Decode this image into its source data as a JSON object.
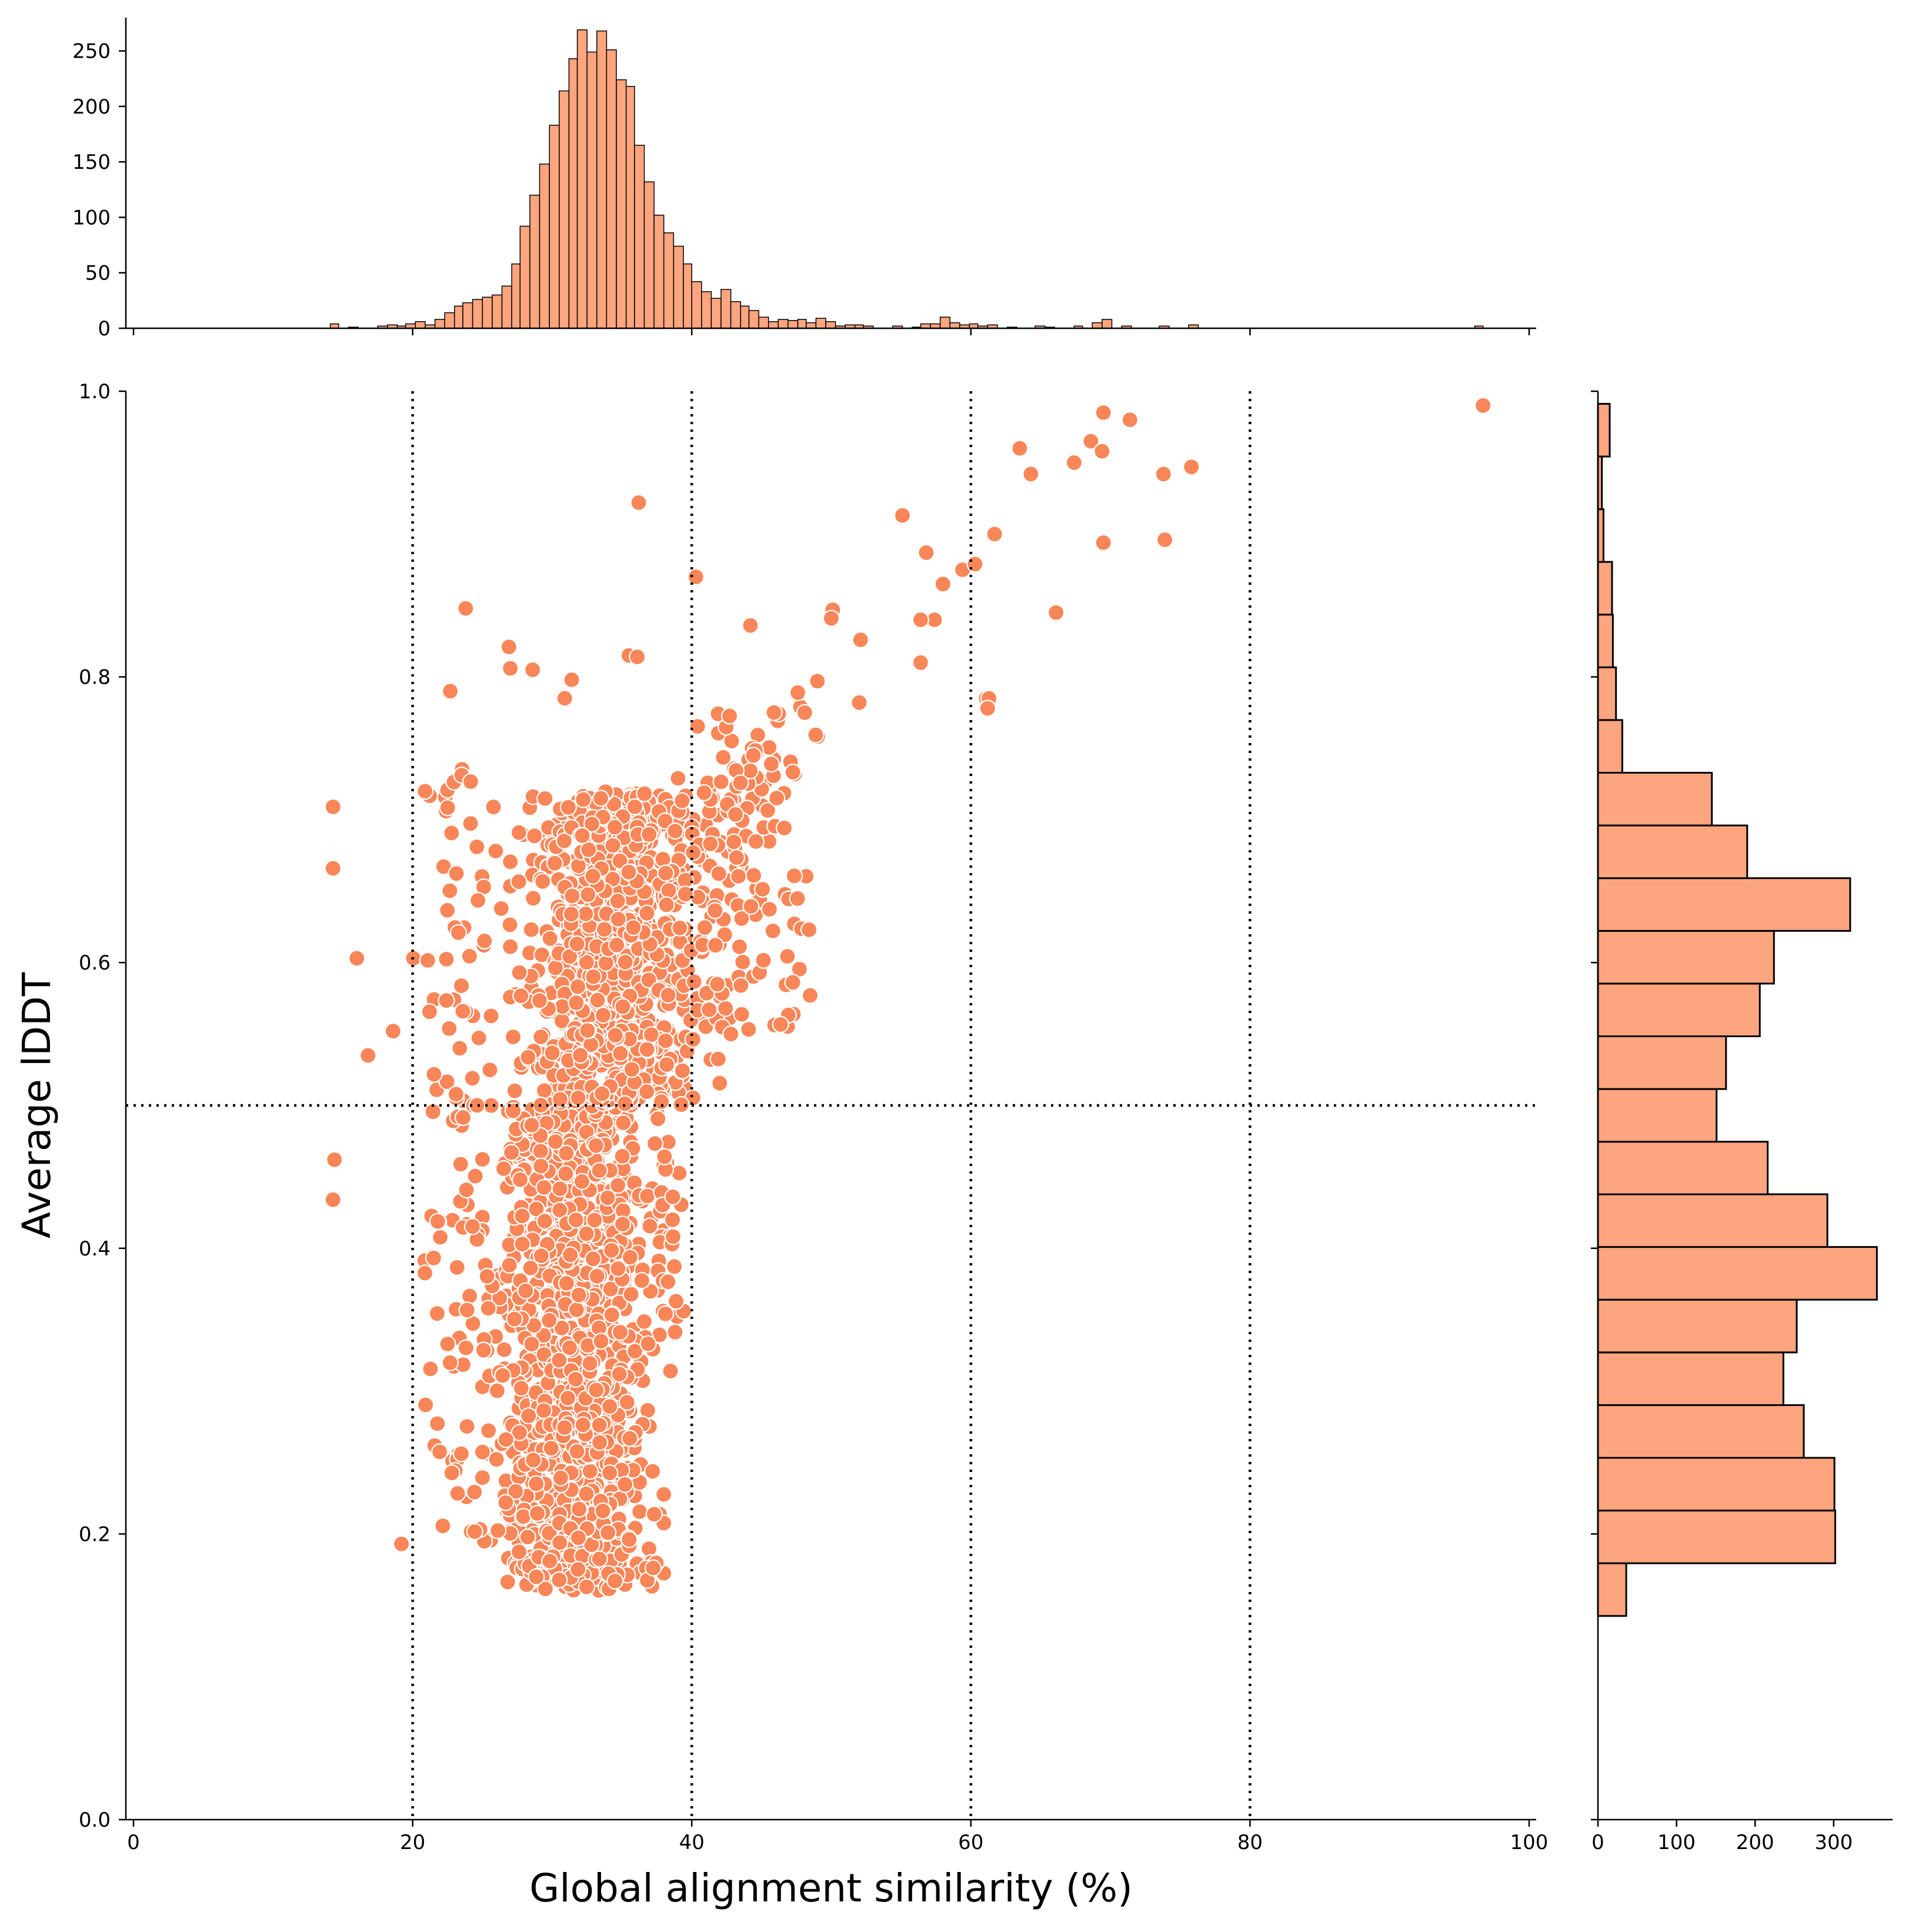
{
  "chart_data": {
    "type": "scatter",
    "title": "",
    "xlabel": "Global alignment similarity (%)",
    "ylabel": "Average lDDT",
    "xlim": [
      0,
      100
    ],
    "ylim": [
      0,
      1.0
    ],
    "grid": false,
    "legend": "none",
    "colors": {
      "points": "#f88658",
      "point_edge": "#ffffff",
      "histogram": "#fda57f",
      "histogram_edge": "#000000",
      "reference_lines": "#000000"
    },
    "reference_lines": {
      "vertical_x": [
        20,
        40,
        60,
        80
      ],
      "horizontal_y": [
        0.5
      ]
    },
    "x_ticks": [
      "0",
      "20",
      "40",
      "60",
      "80",
      "100"
    ],
    "y_ticks": [
      "0.0",
      "0.2",
      "0.4",
      "0.6",
      "0.8",
      "1.0"
    ],
    "scatter_outliers": {
      "x": [
        96.7,
        69.5,
        71.4,
        63.5,
        68.6,
        69.4,
        64.3,
        67.4,
        75.8,
        73.8,
        55.1,
        36.2,
        61.7,
        69.5,
        73.9,
        56.8,
        59.4,
        60.3,
        58.0,
        57.4,
        40.3,
        50.1,
        50.0,
        66.1,
        56.4,
        61.1,
        52.1,
        56.4,
        61.3,
        61.2,
        26.9,
        35.5,
        36.1,
        28.6,
        27.0,
        30.9,
        22.7,
        31.4,
        23.8,
        44.2,
        47.6,
        48.1,
        49.0,
        52.0,
        14.3,
        14.3,
        14.4,
        14.3,
        16.0,
        16.8,
        18.6,
        19.2
      ],
      "y": [
        0.99,
        0.985,
        0.98,
        0.96,
        0.965,
        0.958,
        0.942,
        0.95,
        0.947,
        0.942,
        0.913,
        0.922,
        0.9,
        0.894,
        0.896,
        0.887,
        0.875,
        0.879,
        0.865,
        0.84,
        0.87,
        0.847,
        0.841,
        0.845,
        0.81,
        0.785,
        0.826,
        0.84,
        0.785,
        0.778,
        0.821,
        0.815,
        0.814,
        0.805,
        0.806,
        0.785,
        0.79,
        0.798,
        0.848,
        0.836,
        0.789,
        0.775,
        0.797,
        0.782,
        0.709,
        0.666,
        0.462,
        0.434,
        0.603,
        0.535,
        0.552,
        0.193
      ]
    },
    "scatter_clusters": [
      {
        "x_range": [
          25,
          38
        ],
        "y_range": [
          0.16,
          0.5
        ],
        "n": 1200
      },
      {
        "x_range": [
          27,
          42
        ],
        "y_range": [
          0.5,
          0.72
        ],
        "n": 900
      },
      {
        "x_range": [
          20,
          27
        ],
        "y_range": [
          0.2,
          0.75
        ],
        "n": 120
      },
      {
        "x_range": [
          38,
          50
        ],
        "y_range": [
          0.55,
          0.78
        ],
        "n": 150
      },
      {
        "x_range": [
          37,
          40
        ],
        "y_range": [
          0.3,
          0.5
        ],
        "n": 30
      }
    ],
    "x_histogram": {
      "y_ticks": [
        "0",
        "50",
        "100",
        "150",
        "200",
        "250"
      ],
      "ylim": [
        0,
        280
      ],
      "bins": [
        [
          14.1,
          14.7,
          4
        ],
        [
          15.4,
          16.1,
          1
        ],
        [
          16.8,
          17.5,
          0
        ],
        [
          17.5,
          18.2,
          2
        ],
        [
          18.2,
          18.9,
          3
        ],
        [
          18.9,
          19.5,
          2
        ],
        [
          19.5,
          20.2,
          4
        ],
        [
          20.2,
          20.9,
          6
        ],
        [
          20.9,
          21.6,
          3
        ],
        [
          21.6,
          22.3,
          8
        ],
        [
          22.3,
          23.0,
          14
        ],
        [
          23.0,
          23.6,
          20
        ],
        [
          23.6,
          24.3,
          23
        ],
        [
          24.3,
          25.0,
          26
        ],
        [
          25.0,
          25.7,
          28
        ],
        [
          25.7,
          26.4,
          30
        ],
        [
          26.4,
          27.1,
          38
        ],
        [
          27.1,
          27.7,
          58
        ],
        [
          27.7,
          28.4,
          92
        ],
        [
          28.4,
          29.1,
          120
        ],
        [
          29.1,
          29.8,
          148
        ],
        [
          29.8,
          30.5,
          183
        ],
        [
          30.5,
          31.2,
          214
        ],
        [
          31.2,
          31.8,
          243
        ],
        [
          31.8,
          32.5,
          269
        ],
        [
          32.5,
          33.2,
          249
        ],
        [
          33.2,
          33.9,
          268
        ],
        [
          33.9,
          34.6,
          251
        ],
        [
          34.6,
          35.3,
          224
        ],
        [
          35.3,
          35.9,
          218
        ],
        [
          35.9,
          36.6,
          165
        ],
        [
          36.6,
          37.3,
          132
        ],
        [
          37.3,
          38.0,
          102
        ],
        [
          38.0,
          38.7,
          86
        ],
        [
          38.7,
          39.4,
          74
        ],
        [
          39.4,
          40.0,
          58
        ],
        [
          40.0,
          40.7,
          42
        ],
        [
          40.7,
          41.4,
          33
        ],
        [
          41.4,
          42.1,
          27
        ],
        [
          42.1,
          42.8,
          35
        ],
        [
          42.8,
          43.5,
          24
        ],
        [
          43.5,
          44.1,
          20
        ],
        [
          44.1,
          44.8,
          16
        ],
        [
          44.8,
          45.5,
          10
        ],
        [
          45.5,
          46.2,
          6
        ],
        [
          46.2,
          46.9,
          8
        ],
        [
          46.9,
          47.6,
          7
        ],
        [
          47.6,
          48.2,
          8
        ],
        [
          48.2,
          48.9,
          5
        ],
        [
          48.9,
          49.6,
          9
        ],
        [
          49.6,
          50.3,
          6
        ],
        [
          50.3,
          51.0,
          2
        ],
        [
          51.0,
          51.7,
          3
        ],
        [
          51.7,
          52.3,
          3
        ],
        [
          52.3,
          53.0,
          2
        ],
        [
          54.4,
          55.1,
          2
        ],
        [
          55.8,
          56.4,
          1
        ],
        [
          56.4,
          57.1,
          4
        ],
        [
          57.1,
          57.8,
          4
        ],
        [
          57.8,
          58.5,
          10
        ],
        [
          58.5,
          59.2,
          5
        ],
        [
          59.2,
          59.9,
          3
        ],
        [
          59.9,
          60.5,
          4
        ],
        [
          60.5,
          61.2,
          2
        ],
        [
          61.2,
          61.9,
          3
        ],
        [
          62.6,
          63.3,
          1
        ],
        [
          64.6,
          65.3,
          2
        ],
        [
          65.3,
          66.0,
          1
        ],
        [
          67.4,
          68.0,
          2
        ],
        [
          68.7,
          69.4,
          5
        ],
        [
          69.4,
          70.1,
          8
        ],
        [
          70.8,
          71.5,
          2
        ],
        [
          73.5,
          74.2,
          2
        ],
        [
          75.6,
          76.3,
          3
        ],
        [
          96.1,
          96.7,
          2
        ]
      ]
    },
    "y_histogram": {
      "x_ticks": [
        "0",
        "100",
        "200",
        "300"
      ],
      "xlim": [
        0,
        375
      ],
      "bins": [
        [
          0.1426,
          0.1795,
          36
        ],
        [
          0.1795,
          0.2164,
          302
        ],
        [
          0.2164,
          0.2533,
          301
        ],
        [
          0.2533,
          0.2902,
          262
        ],
        [
          0.2902,
          0.3271,
          236
        ],
        [
          0.3271,
          0.364,
          253
        ],
        [
          0.364,
          0.4009,
          355
        ],
        [
          0.4009,
          0.4378,
          292
        ],
        [
          0.4378,
          0.4746,
          216
        ],
        [
          0.4746,
          0.5115,
          151
        ],
        [
          0.5115,
          0.5484,
          163
        ],
        [
          0.5484,
          0.5853,
          206
        ],
        [
          0.5853,
          0.6222,
          224
        ],
        [
          0.6222,
          0.6591,
          321
        ],
        [
          0.6591,
          0.696,
          190
        ],
        [
          0.696,
          0.7329,
          145
        ],
        [
          0.7329,
          0.7698,
          31
        ],
        [
          0.7698,
          0.8067,
          23
        ],
        [
          0.8067,
          0.8436,
          19
        ],
        [
          0.8436,
          0.8805,
          18
        ],
        [
          0.8805,
          0.9174,
          7
        ],
        [
          0.9174,
          0.9543,
          5
        ],
        [
          0.9543,
          0.9912,
          15
        ]
      ]
    }
  }
}
